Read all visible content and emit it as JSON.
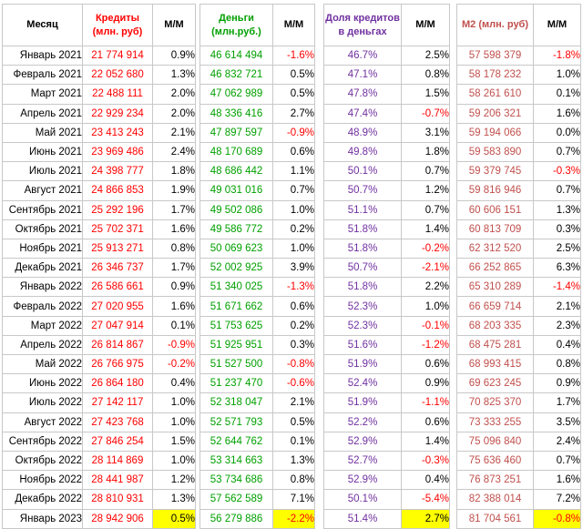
{
  "headers": {
    "month": "Месяц",
    "credits": "Кредиты (млн. руб)",
    "money": "Деньги (млн.руб.)",
    "share": "Доля кредитов в деньгах",
    "m2": "М2 (млн. руб)",
    "mm": "М/М"
  },
  "colors": {
    "credits": "#ff0000",
    "money": "#00a000",
    "share": "#7030a0",
    "m2": "#c0504d",
    "negative": "#ff0000",
    "highlight": "#ffff00"
  },
  "rows": [
    {
      "month": "Январь 2021",
      "credits": "21 774 914",
      "credits_mm": "0.9%",
      "money": "46 614 494",
      "money_mm": "-1.6%",
      "share": "46.7%",
      "share_mm": "2.5%",
      "m2": "57 598 379",
      "m2_mm": "-1.8%"
    },
    {
      "month": "Февраль 2021",
      "credits": "22 052 680",
      "credits_mm": "1.3%",
      "money": "46 832 721",
      "money_mm": "0.5%",
      "share": "47.1%",
      "share_mm": "0.8%",
      "m2": "58 178 232",
      "m2_mm": "1.0%"
    },
    {
      "month": "Март 2021",
      "credits": "22 488 111",
      "credits_mm": "2.0%",
      "money": "47 062 989",
      "money_mm": "0.5%",
      "share": "47.8%",
      "share_mm": "1.5%",
      "m2": "58 261 610",
      "m2_mm": "0.1%"
    },
    {
      "month": "Апрель 2021",
      "credits": "22 929 234",
      "credits_mm": "2.0%",
      "money": "48 336 416",
      "money_mm": "2.7%",
      "share": "47.4%",
      "share_mm": "-0.7%",
      "m2": "59 206 321",
      "m2_mm": "1.6%"
    },
    {
      "month": "Май 2021",
      "credits": "23 413 243",
      "credits_mm": "2.1%",
      "money": "47 897 597",
      "money_mm": "-0.9%",
      "share": "48.9%",
      "share_mm": "3.1%",
      "m2": "59 194 066",
      "m2_mm": "0.0%"
    },
    {
      "month": "Июнь 2021",
      "credits": "23 969 486",
      "credits_mm": "2.4%",
      "money": "48 170 689",
      "money_mm": "0.6%",
      "share": "49.8%",
      "share_mm": "1.8%",
      "m2": "59 583 890",
      "m2_mm": "0.7%"
    },
    {
      "month": "Июль 2021",
      "credits": "24 398 777",
      "credits_mm": "1.8%",
      "money": "48 686 442",
      "money_mm": "1.1%",
      "share": "50.1%",
      "share_mm": "0.7%",
      "m2": "59 379 745",
      "m2_mm": "-0.3%"
    },
    {
      "month": "Август 2021",
      "credits": "24 866 853",
      "credits_mm": "1.9%",
      "money": "49 031 016",
      "money_mm": "0.7%",
      "share": "50.7%",
      "share_mm": "1.2%",
      "m2": "59 816 946",
      "m2_mm": "0.7%"
    },
    {
      "month": "Сентябрь 2021",
      "credits": "25 292 196",
      "credits_mm": "1.7%",
      "money": "49 502 086",
      "money_mm": "1.0%",
      "share": "51.1%",
      "share_mm": "0.7%",
      "m2": "60 606 151",
      "m2_mm": "1.3%"
    },
    {
      "month": "Октябрь 2021",
      "credits": "25 702 371",
      "credits_mm": "1.6%",
      "money": "49 586 772",
      "money_mm": "0.2%",
      "share": "51.8%",
      "share_mm": "1.4%",
      "m2": "60 813 709",
      "m2_mm": "0.3%"
    },
    {
      "month": "Ноябрь 2021",
      "credits": "25 913 271",
      "credits_mm": "0.8%",
      "money": "50 069 623",
      "money_mm": "1.0%",
      "share": "51.8%",
      "share_mm": "-0.2%",
      "m2": "62 312 520",
      "m2_mm": "2.5%"
    },
    {
      "month": "Декабрь 2021",
      "credits": "26 346 737",
      "credits_mm": "1.7%",
      "money": "52 002 925",
      "money_mm": "3.9%",
      "share": "50.7%",
      "share_mm": "-2.1%",
      "m2": "66 252 865",
      "m2_mm": "6.3%"
    },
    {
      "month": "Январь 2022",
      "credits": "26 586 661",
      "credits_mm": "0.9%",
      "money": "51 340 025",
      "money_mm": "-1.3%",
      "share": "51.8%",
      "share_mm": "2.2%",
      "m2": "65 310 289",
      "m2_mm": "-1.4%"
    },
    {
      "month": "Февраль 2022",
      "credits": "27 020 955",
      "credits_mm": "1.6%",
      "money": "51 671 662",
      "money_mm": "0.6%",
      "share": "52.3%",
      "share_mm": "1.0%",
      "m2": "66 659 714",
      "m2_mm": "2.1%"
    },
    {
      "month": "Март 2022",
      "credits": "27 047 914",
      "credits_mm": "0.1%",
      "money": "51 753 625",
      "money_mm": "0.2%",
      "share": "52.3%",
      "share_mm": "-0.1%",
      "m2": "68 203 335",
      "m2_mm": "2.3%"
    },
    {
      "month": "Апрель 2022",
      "credits": "26 814 867",
      "credits_mm": "-0.9%",
      "money": "51 925 951",
      "money_mm": "0.3%",
      "share": "51.6%",
      "share_mm": "-1.2%",
      "m2": "68 475 281",
      "m2_mm": "0.4%"
    },
    {
      "month": "Май 2022",
      "credits": "26 766 975",
      "credits_mm": "-0.2%",
      "money": "51 527 500",
      "money_mm": "-0.8%",
      "share": "51.9%",
      "share_mm": "0.6%",
      "m2": "68 993 415",
      "m2_mm": "0.8%"
    },
    {
      "month": "Июнь 2022",
      "credits": "26 864 180",
      "credits_mm": "0.4%",
      "money": "51 237 470",
      "money_mm": "-0.6%",
      "share": "52.4%",
      "share_mm": "0.9%",
      "m2": "69 623 245",
      "m2_mm": "0.9%"
    },
    {
      "month": "Июль 2022",
      "credits": "27 142 117",
      "credits_mm": "1.0%",
      "money": "52 318 047",
      "money_mm": "2.1%",
      "share": "51.9%",
      "share_mm": "-1.1%",
      "m2": "70 825 370",
      "m2_mm": "1.7%"
    },
    {
      "month": "Август 2022",
      "credits": "27 423 768",
      "credits_mm": "1.0%",
      "money": "52 571 793",
      "money_mm": "0.5%",
      "share": "52.2%",
      "share_mm": "0.6%",
      "m2": "73 333 255",
      "m2_mm": "3.5%"
    },
    {
      "month": "Сентябрь 2022",
      "credits": "27 846 254",
      "credits_mm": "1.5%",
      "money": "52 644 762",
      "money_mm": "0.1%",
      "share": "52.9%",
      "share_mm": "1.4%",
      "m2": "75 096 840",
      "m2_mm": "2.4%"
    },
    {
      "month": "Октябрь 2022",
      "credits": "28 114 869",
      "credits_mm": "1.0%",
      "money": "53 314 663",
      "money_mm": "1.3%",
      "share": "52.7%",
      "share_mm": "-0.3%",
      "m2": "75 636 460",
      "m2_mm": "0.7%"
    },
    {
      "month": "Ноябрь 2022",
      "credits": "28 441 987",
      "credits_mm": "1.2%",
      "money": "53 734 686",
      "money_mm": "0.8%",
      "share": "52.9%",
      "share_mm": "0.4%",
      "m2": "76 873 251",
      "m2_mm": "1.6%"
    },
    {
      "month": "Декабрь 2022",
      "credits": "28 810 931",
      "credits_mm": "1.3%",
      "money": "57 562 589",
      "money_mm": "7.1%",
      "share": "50.1%",
      "share_mm": "-5.4%",
      "m2": "82 388 014",
      "m2_mm": "7.2%"
    },
    {
      "month": "Январь 2023",
      "credits": "28 942 906",
      "credits_mm": "0.5%",
      "money": "56 279 886",
      "money_mm": "-2.2%",
      "share": "51.4%",
      "share_mm": "2.7%",
      "m2": "81 704 561",
      "m2_mm": "-0.8%",
      "highlight": true
    }
  ]
}
